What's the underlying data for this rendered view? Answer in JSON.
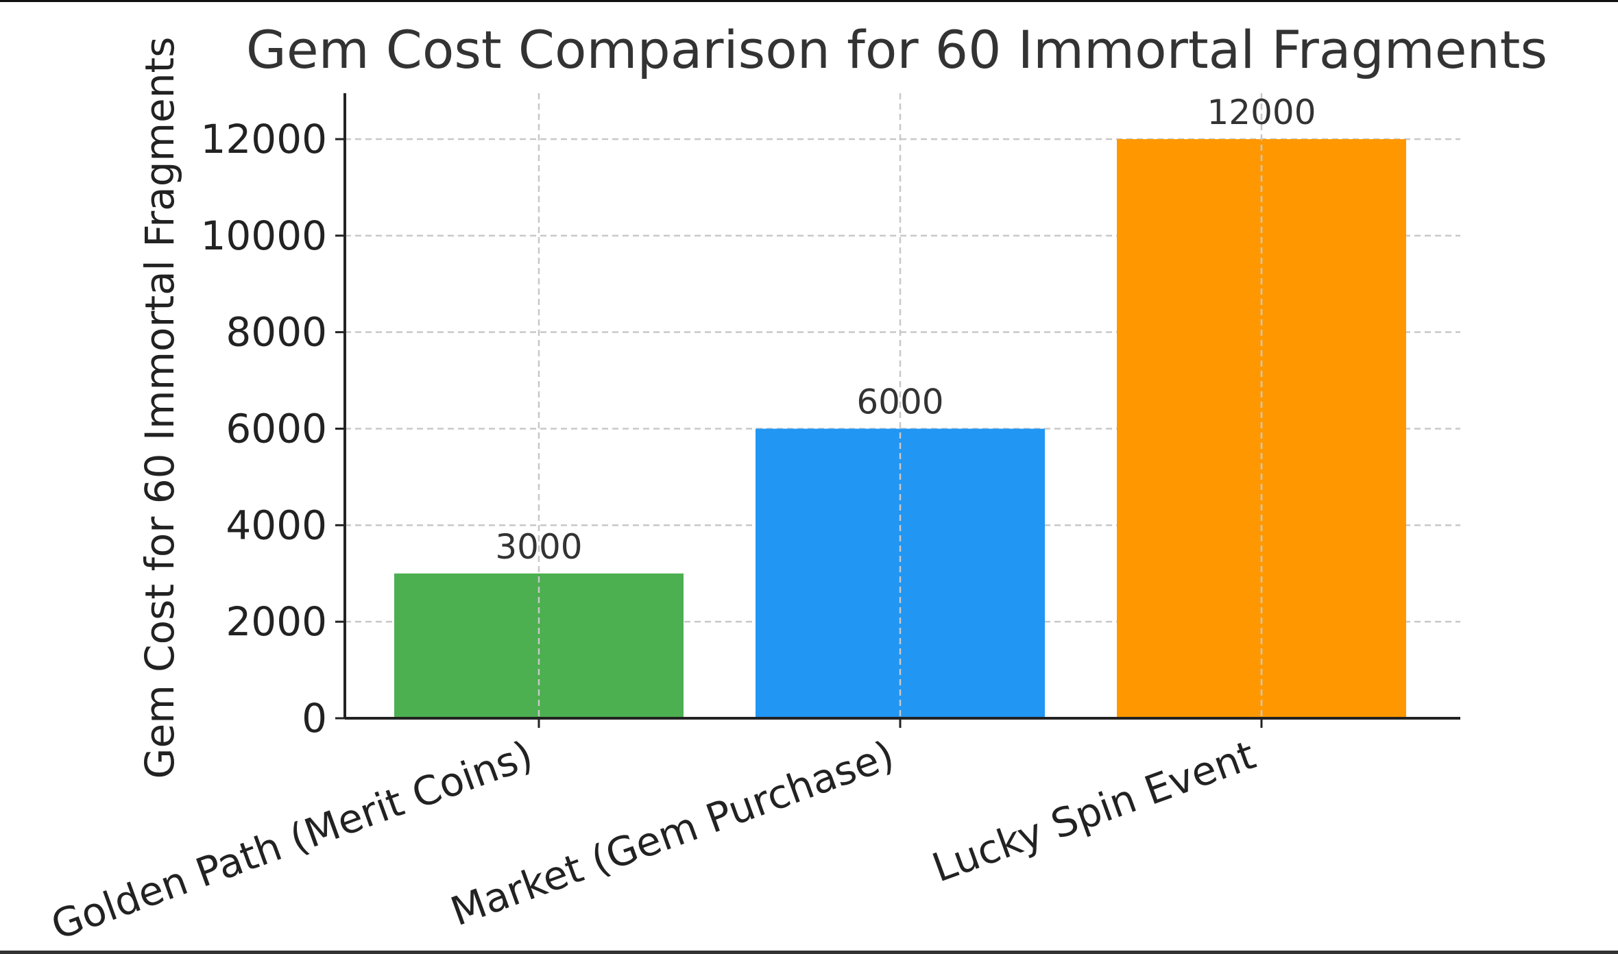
{
  "chart_data": {
    "type": "bar",
    "title": "Gem Cost Comparison for 60 Immortal Fragments",
    "xlabel": "",
    "ylabel": "Gem Cost for 60 Immortal Fragments",
    "categories": [
      "Golden Path (Merit Coins)",
      "Market (Gem Purchase)",
      "Lucky Spin Event"
    ],
    "values": [
      3000,
      6000,
      12000
    ],
    "data_labels": [
      "3000",
      "6000",
      "12000"
    ],
    "bar_colors": [
      "#4caf50",
      "#2196f3",
      "#ff9800"
    ],
    "ylim": [
      0,
      13000
    ],
    "yticks": [
      0,
      2000,
      4000,
      6000,
      8000,
      10000,
      12000
    ],
    "ytick_labels": [
      "0",
      "2000",
      "4000",
      "6000",
      "8000",
      "10000",
      "12000"
    ],
    "grid": true,
    "x_tick_rotation": "angled",
    "legend": "none"
  }
}
